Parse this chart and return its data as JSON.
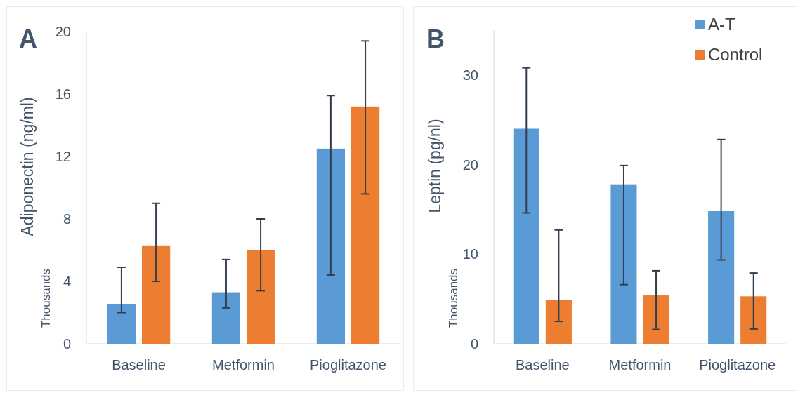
{
  "chart_data": [
    {
      "type": "bar",
      "title": "A",
      "ylabel": "Adiponectin (ng/ml)",
      "annotations": [
        "Thousands"
      ],
      "categories": [
        "Baseline",
        "Metformin",
        "Pioglitazone"
      ],
      "ylim": [
        0,
        20
      ],
      "yticks": [
        0,
        4,
        8,
        12,
        16,
        20
      ],
      "series": [
        {
          "color": "#5b9bd5",
          "values": [
            2.55,
            3.3,
            12.5
          ],
          "errors": [
            [
              2.0,
              4.9
            ],
            [
              2.3,
              5.4
            ],
            [
              4.4,
              15.9
            ]
          ]
        },
        {
          "color": "#ed7d31",
          "values": [
            6.3,
            6.0,
            15.2
          ],
          "errors": [
            [
              4.0,
              9.0
            ],
            [
              3.4,
              8.0
            ],
            [
              9.6,
              19.4
            ]
          ]
        }
      ]
    },
    {
      "type": "bar",
      "title": "B",
      "ylabel": "Leptin (pg/nl)",
      "annotations": [
        "Thousands"
      ],
      "categories": [
        "Baseline",
        "Metformin",
        "Pioglitazone"
      ],
      "ylim": [
        0,
        35
      ],
      "yticks": [
        0,
        10,
        20,
        30
      ],
      "legend": "top right",
      "series": [
        {
          "name": "A-T",
          "color": "#5b9bd5",
          "values": [
            24.0,
            17.8,
            14.8
          ],
          "errors": [
            [
              14.6,
              30.8
            ],
            [
              6.6,
              19.9
            ],
            [
              9.35,
              22.8
            ]
          ]
        },
        {
          "name": "Control",
          "color": "#ed7d31",
          "values": [
            4.86,
            5.4,
            5.3
          ],
          "errors": [
            [
              2.5,
              12.7
            ],
            [
              1.6,
              8.15
            ],
            [
              1.65,
              7.9
            ]
          ]
        }
      ]
    }
  ]
}
